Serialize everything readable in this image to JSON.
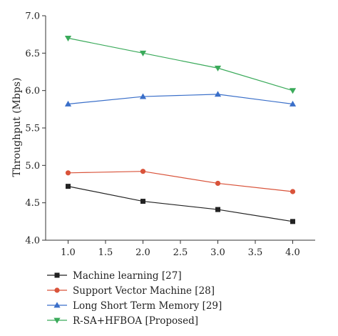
{
  "chart_data": {
    "type": "line",
    "title": "",
    "xlabel": "",
    "ylabel": "Throughput (Mbps)",
    "x": [
      1.0,
      2.0,
      3.0,
      4.0
    ],
    "xlim": [
      0.7,
      4.3
    ],
    "ylim": [
      4.0,
      7.0
    ],
    "x_ticks": [
      "1.0",
      "1.5",
      "2.0",
      "2.5",
      "3.0",
      "3.5",
      "4.0"
    ],
    "y_ticks": [
      "4.0",
      "4.5",
      "5.0",
      "5.5",
      "6.0",
      "6.5",
      "7.0"
    ],
    "grid": false,
    "legend_position": "bottom",
    "series": [
      {
        "name": "Machine learning [27]",
        "values": [
          4.72,
          4.52,
          4.41,
          4.25
        ],
        "color": "#222222",
        "marker": "square"
      },
      {
        "name": "Support Vector Machine [28]",
        "values": [
          4.9,
          4.92,
          4.76,
          4.65
        ],
        "color": "#d9533a",
        "marker": "circle"
      },
      {
        "name": "Long Short Term Memory [29]",
        "values": [
          5.82,
          5.92,
          5.95,
          5.82
        ],
        "color": "#3a6fc9",
        "marker": "triangle-up"
      },
      {
        "name": "R-SA+HFBOA [Proposed]",
        "values": [
          6.7,
          6.5,
          6.3,
          6.0
        ],
        "color": "#3aaa5a",
        "marker": "triangle-down"
      }
    ]
  }
}
